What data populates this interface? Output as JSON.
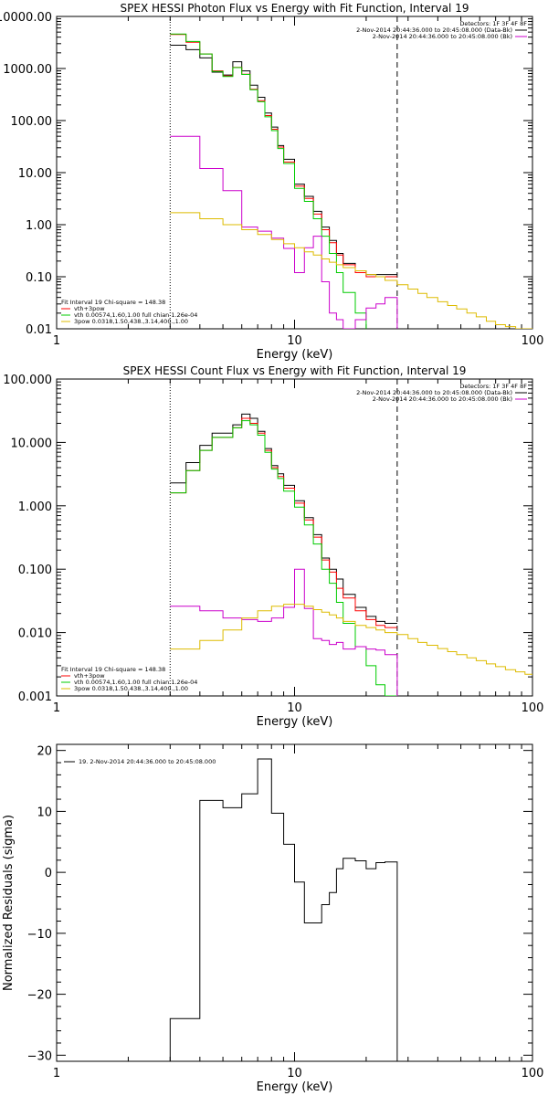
{
  "chart_data": [
    {
      "type": "line",
      "panel": "photon",
      "title": "SPEX HESSI Photon Flux vs Energy with Fit Function, Interval 19",
      "xlabel": "Energy (keV)",
      "ylabel": "",
      "xscale": "log",
      "yscale": "log",
      "xlim": [
        1,
        100
      ],
      "ylim": [
        0.01,
        10000
      ],
      "xticks": [
        "1",
        "10",
        "100"
      ],
      "yticks": [
        "0.01",
        "0.10",
        "1.00",
        "10.00",
        "100.00",
        "1000.00",
        "10000.00"
      ],
      "ytick_values": [
        0.01,
        0.1,
        1,
        10,
        100,
        1000,
        10000
      ],
      "vlines": [
        {
          "x": 3.0,
          "style": "dotted"
        },
        {
          "x": 27.0,
          "style": "dashed"
        }
      ],
      "legend_right": {
        "header": "Detectors: 1F 3F 4F 8F",
        "items": [
          {
            "text": "2-Nov-2014 20:44:36.000 to 20:45:08.000 (Data-Bk)",
            "color": "#000000"
          },
          {
            "text": "2-Nov-2014 20:44:36.000 to 20:45:08.000 (Bk)",
            "color": "#cc00cc"
          }
        ]
      },
      "legend_left": {
        "header": "Fit Interval 19   Chi-square = 148.38",
        "items": [
          {
            "text": "vth+3pow",
            "color": "#ff0000"
          },
          {
            "text": "vth 0.00574,1.60,1.00  full chian 1.26e-04",
            "color": "#00cc00"
          },
          {
            "text": "3pow 0.0318,1.50,438.,3.14,400.,1.00",
            "color": "#ddbb00"
          }
        ]
      },
      "series": [
        {
          "name": "Data-Bk",
          "color": "#000000",
          "edges": [
            3,
            3.5,
            4,
            4.5,
            5,
            5.5,
            6,
            6.5,
            7,
            7.5,
            8,
            8.5,
            9,
            10,
            11,
            12,
            13,
            14,
            15,
            16,
            18,
            20,
            22,
            24,
            27
          ],
          "values": [
            2800,
            2300,
            1600,
            850,
            750,
            1350,
            900,
            480,
            280,
            140,
            75,
            33,
            18,
            6,
            3.5,
            1.8,
            0.9,
            0.5,
            0.28,
            0.18,
            0.13,
            0.11,
            0.11,
            0.11
          ]
        },
        {
          "name": "Model",
          "color": "#ff0000",
          "edges": [
            3,
            3.5,
            4,
            4.5,
            5,
            5.5,
            6,
            6.5,
            7,
            7.5,
            8,
            8.5,
            9,
            10,
            11,
            12,
            13,
            14,
            15,
            16,
            18,
            20,
            22,
            24,
            27
          ],
          "values": [
            4500,
            3200,
            1900,
            900,
            720,
            1050,
            780,
            400,
            240,
            125,
            68,
            31,
            16,
            5.5,
            3.2,
            1.6,
            0.8,
            0.45,
            0.26,
            0.17,
            0.12,
            0.1,
            0.1,
            0.1
          ]
        },
        {
          "name": "vth",
          "color": "#00cc00",
          "edges": [
            3,
            3.5,
            4,
            4.5,
            5,
            5.5,
            6,
            6.5,
            7,
            7.5,
            8,
            8.5,
            9,
            10,
            11,
            12,
            13,
            14,
            15,
            16,
            18,
            20
          ],
          "values": [
            4600,
            3300,
            1900,
            880,
            700,
            1040,
            770,
            390,
            230,
            118,
            64,
            29,
            15,
            5,
            2.8,
            1.3,
            0.6,
            0.28,
            0.12,
            0.05,
            0.02
          ]
        },
        {
          "name": "Bk",
          "color": "#cc00cc",
          "edges": [
            3,
            4,
            5,
            6,
            7,
            8,
            9,
            10,
            11,
            12,
            13,
            14,
            15,
            16,
            18,
            20,
            22,
            24,
            27
          ],
          "values": [
            50,
            12,
            4.5,
            0.9,
            0.75,
            0.55,
            0.35,
            0.12,
            0.36,
            0.6,
            0.08,
            0.02,
            0.015,
            0.01,
            0.015,
            0.025,
            0.03,
            0.04
          ]
        },
        {
          "name": "3pow",
          "color": "#ddbb00",
          "edges": [
            3,
            4,
            5,
            6,
            7,
            8,
            9,
            10,
            11,
            12,
            13,
            14,
            15,
            16,
            18,
            20,
            22,
            24,
            27,
            30,
            33,
            36,
            40,
            44,
            48,
            53,
            58,
            64,
            70,
            77,
            85,
            93,
            100
          ],
          "values": [
            1.7,
            1.3,
            1.0,
            0.8,
            0.65,
            0.52,
            0.43,
            0.36,
            0.3,
            0.26,
            0.22,
            0.19,
            0.17,
            0.15,
            0.13,
            0.11,
            0.1,
            0.085,
            0.07,
            0.058,
            0.048,
            0.04,
            0.033,
            0.028,
            0.024,
            0.02,
            0.017,
            0.014,
            0.012,
            0.011,
            0.01,
            0.01
          ]
        }
      ]
    },
    {
      "type": "line",
      "panel": "count",
      "title": "SPEX HESSI Count Flux vs Energy with Fit Function, Interval 19",
      "xlabel": "Energy (keV)",
      "ylabel": "",
      "xscale": "log",
      "yscale": "log",
      "xlim": [
        1,
        100
      ],
      "ylim": [
        0.001,
        100
      ],
      "xticks": [
        "1",
        "10",
        "100"
      ],
      "yticks": [
        "0.001",
        "0.010",
        "0.100",
        "1.000",
        "10.000",
        "100.000"
      ],
      "ytick_values": [
        0.001,
        0.01,
        0.1,
        1,
        10,
        100
      ],
      "vlines": [
        {
          "x": 3.0,
          "style": "dotted"
        },
        {
          "x": 27.0,
          "style": "dashed"
        }
      ],
      "legend_right": {
        "header": "Detectors: 1F 3F 4F 8F",
        "items": [
          {
            "text": "2-Nov-2014 20:44:36.000 to 20:45:08.000 (Data-Bk)",
            "color": "#000000"
          },
          {
            "text": "2-Nov-2014 20:44:36.000 to 20:45:08.000 (Bk)",
            "color": "#cc00cc"
          }
        ]
      },
      "legend_left": {
        "header": "Fit Interval 19   Chi-square = 148.38",
        "items": [
          {
            "text": "vth+3pow",
            "color": "#ff0000"
          },
          {
            "text": "vth 0.00574,1.60,1.00  full chian 1.26e-04",
            "color": "#00cc00"
          },
          {
            "text": "3pow 0.0318,1.50,438.,3.14,400.,1.00",
            "color": "#ddbb00"
          }
        ]
      },
      "series": [
        {
          "name": "Data-Bk",
          "color": "#000000",
          "edges": [
            3,
            3.5,
            4,
            4.5,
            5,
            5.5,
            6,
            6.5,
            7,
            7.5,
            8,
            8.5,
            9,
            10,
            11,
            12,
            13,
            14,
            15,
            16,
            18,
            20,
            22,
            24,
            27
          ],
          "values": [
            2.3,
            4.8,
            9,
            14,
            14,
            19,
            28,
            24,
            15,
            8,
            4.3,
            3.2,
            2.1,
            1.2,
            0.65,
            0.35,
            0.15,
            0.1,
            0.07,
            0.04,
            0.025,
            0.018,
            0.015,
            0.014
          ]
        },
        {
          "name": "Model",
          "color": "#ff0000",
          "edges": [
            3,
            3.5,
            4,
            4.5,
            5,
            5.5,
            6,
            6.5,
            7,
            7.5,
            8,
            8.5,
            9,
            10,
            11,
            12,
            13,
            14,
            15,
            16,
            18,
            20,
            22,
            24,
            27
          ],
          "values": [
            1.6,
            3.6,
            7.5,
            12,
            12,
            17,
            24,
            20,
            14,
            7.5,
            4,
            2.9,
            1.9,
            1.1,
            0.6,
            0.32,
            0.14,
            0.09,
            0.05,
            0.035,
            0.022,
            0.016,
            0.013,
            0.012
          ]
        },
        {
          "name": "vth",
          "color": "#00cc00",
          "edges": [
            3,
            3.5,
            4,
            4.5,
            5,
            5.5,
            6,
            6.5,
            7,
            7.5,
            8,
            8.5,
            9,
            10,
            11,
            12,
            13,
            14,
            15,
            16,
            18,
            20,
            22,
            24,
            27
          ],
          "values": [
            1.6,
            3.6,
            7.5,
            12,
            12,
            17,
            22,
            19,
            13,
            7,
            3.8,
            2.7,
            1.7,
            0.95,
            0.5,
            0.25,
            0.1,
            0.06,
            0.03,
            0.014,
            0.006,
            0.003,
            0.0015,
            0.001
          ]
        },
        {
          "name": "Bk",
          "color": "#cc00cc",
          "edges": [
            3,
            4,
            5,
            6,
            7,
            8,
            9,
            10,
            11,
            12,
            13,
            14,
            15,
            16,
            18,
            20,
            22,
            24,
            27
          ],
          "values": [
            0.026,
            0.022,
            0.017,
            0.016,
            0.015,
            0.017,
            0.025,
            0.1,
            0.024,
            0.008,
            0.0075,
            0.0065,
            0.007,
            0.0055,
            0.006,
            0.0055,
            0.0053,
            0.0045
          ]
        },
        {
          "name": "3pow",
          "color": "#ddbb00",
          "edges": [
            3,
            4,
            5,
            6,
            7,
            8,
            9,
            10,
            11,
            12,
            13,
            14,
            15,
            16,
            18,
            20,
            22,
            24,
            27,
            30,
            33,
            36,
            40,
            44,
            48,
            53,
            58,
            64,
            70,
            77,
            85,
            93,
            100
          ],
          "values": [
            0.0055,
            0.0075,
            0.011,
            0.017,
            0.022,
            0.026,
            0.028,
            0.028,
            0.026,
            0.023,
            0.021,
            0.019,
            0.017,
            0.015,
            0.013,
            0.012,
            0.011,
            0.01,
            0.0093,
            0.008,
            0.007,
            0.0063,
            0.0056,
            0.005,
            0.0045,
            0.004,
            0.0036,
            0.0032,
            0.0029,
            0.0026,
            0.0024,
            0.0022
          ]
        }
      ]
    },
    {
      "type": "line",
      "panel": "residuals",
      "title": "",
      "xlabel": "Energy (keV)",
      "ylabel": "Normalized Residuals (sigma)",
      "xscale": "log",
      "yscale": "linear",
      "xlim": [
        1,
        100
      ],
      "ylim": [
        -31,
        21
      ],
      "xticks": [
        "1",
        "10",
        "100"
      ],
      "yticks": [
        "−30",
        "−20",
        "−10",
        "0",
        "10",
        "20"
      ],
      "ytick_values": [
        -30,
        -20,
        -10,
        0,
        10,
        20
      ],
      "legend_left": {
        "header": "",
        "items": [
          {
            "text": "19.  2-Nov-2014 20:44:36.000 to 20:45:08.000",
            "color": "#000000"
          }
        ]
      },
      "series": [
        {
          "name": "19",
          "color": "#000000",
          "edges": [
            3,
            4,
            5,
            6,
            7,
            8,
            9,
            10,
            11,
            12,
            13,
            14,
            15,
            16,
            18,
            20,
            22,
            24,
            27
          ],
          "values": [
            -24,
            11.8,
            10.6,
            12.9,
            18.6,
            9.7,
            4.6,
            -1.6,
            -8.3,
            -8.3,
            -5.3,
            -3.3,
            0.6,
            2.3,
            1.9,
            0.6,
            1.6,
            1.7
          ]
        }
      ]
    }
  ]
}
